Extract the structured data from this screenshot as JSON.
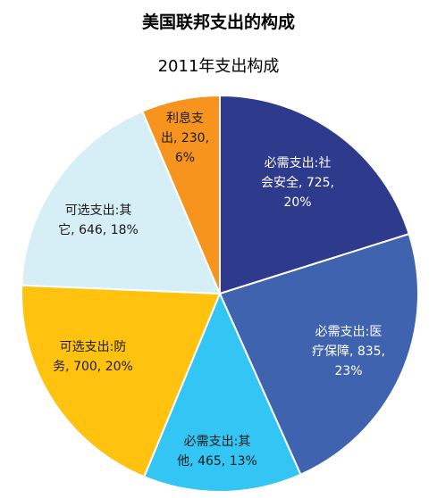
{
  "header": {
    "title": "美国联邦支出的构成",
    "subtitle": "2011年支出构成"
  },
  "chart_data": {
    "type": "pie",
    "title": "2011年支出构成",
    "start_angle_deg": 0,
    "direction": "clockwise",
    "slices": [
      {
        "label": "必需支出:社会安全",
        "value": 725,
        "percent": "20%",
        "color": "#2E3A8C",
        "text_color": "#FFFFFF",
        "lines": [
          "必需支出:社",
          "会安全, 725,",
          "20%"
        ]
      },
      {
        "label": "必需支出:医疗保障",
        "value": 835,
        "percent": "23%",
        "color": "#3F63AE",
        "text_color": "#FFFFFF",
        "lines": [
          "必需支出:医",
          "疗保障, 835,",
          "23%"
        ]
      },
      {
        "label": "必需支出:其他",
        "value": 465,
        "percent": "13%",
        "color": "#33C5F3",
        "text_color": "#1A1A1A",
        "lines": [
          "必需支出:其",
          "他, 465, 13%"
        ]
      },
      {
        "label": "可选支出:防务",
        "value": 700,
        "percent": "20%",
        "color": "#FFC20E",
        "text_color": "#1A1A1A",
        "lines": [
          "可选支出:防",
          "务, 700, 20%"
        ]
      },
      {
        "label": "可选支出:其它",
        "value": 646,
        "percent": "18%",
        "color": "#D6EEF5",
        "text_color": "#1A1A1A",
        "lines": [
          "可选支出:其",
          "它, 646, 18%"
        ]
      },
      {
        "label": "利息支出",
        "value": 230,
        "percent": "6%",
        "color": "#F7941D",
        "text_color": "#1A1A1A",
        "lines": [
          "利息支",
          "出, 230,",
          "6%"
        ]
      }
    ]
  }
}
